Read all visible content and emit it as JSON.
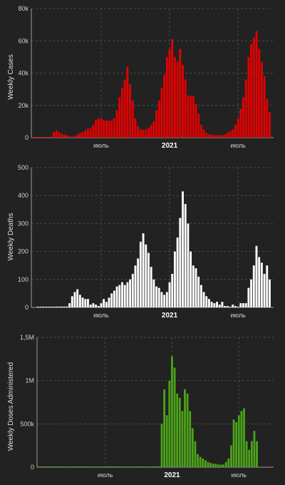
{
  "colors": {
    "background": "#222222",
    "grid": "#4a4a4a",
    "axis": "#9a9a9a",
    "text": "#cfcfcf"
  },
  "chart_data": [
    {
      "type": "bar",
      "ylabel": "Weekly Cases",
      "color": "#e50000",
      "ylim": [
        0,
        80000
      ],
      "yticks": [
        0,
        20000,
        40000,
        60000,
        80000
      ],
      "ytick_labels": [
        "0",
        "20k",
        "40k",
        "60k",
        "80k"
      ],
      "xticks": [
        {
          "week": 26,
          "label": "июль",
          "bold": false
        },
        {
          "week": 52,
          "label": "2021",
          "bold": true
        },
        {
          "week": 78,
          "label": "июль",
          "bold": false
        }
      ],
      "values": [
        0,
        0,
        0,
        0,
        0,
        0,
        0,
        500,
        3500,
        4500,
        3500,
        2500,
        2000,
        1500,
        1000,
        500,
        1000,
        2000,
        3000,
        3500,
        4500,
        5500,
        6000,
        8000,
        11000,
        12000,
        12000,
        11000,
        10500,
        10500,
        10500,
        12000,
        17000,
        25000,
        31000,
        36000,
        44000,
        33000,
        23000,
        12000,
        7000,
        5000,
        5000,
        5000,
        6000,
        8000,
        10000,
        17000,
        23000,
        31000,
        39000,
        50000,
        55000,
        61000,
        50000,
        47000,
        55000,
        45000,
        36000,
        26000,
        26000,
        26000,
        21000,
        15000,
        8000,
        5000,
        3000,
        2000,
        2000,
        1500,
        1500,
        1500,
        1500,
        2000,
        3000,
        4000,
        5000,
        8000,
        12000,
        18000,
        25000,
        36000,
        50000,
        58000,
        62000,
        66000,
        55000,
        47000,
        38000,
        24000,
        16000
      ]
    },
    {
      "type": "bar",
      "ylabel": "Weekly Deaths",
      "color": "#ffffff",
      "ylim": [
        0,
        500
      ],
      "yticks": [
        0,
        100,
        200,
        300,
        400,
        500
      ],
      "ytick_labels": [
        "0",
        "100",
        "200",
        "300",
        "400",
        "500"
      ],
      "xticks": [
        {
          "week": 26,
          "label": "июль",
          "bold": false
        },
        {
          "week": 52,
          "label": "2021",
          "bold": true
        },
        {
          "week": 78,
          "label": "июль",
          "bold": false
        }
      ],
      "values": [
        0,
        0,
        0,
        0,
        0,
        0,
        0,
        3,
        3,
        3,
        3,
        3,
        15,
        40,
        55,
        65,
        45,
        35,
        30,
        30,
        10,
        15,
        10,
        5,
        15,
        30,
        20,
        35,
        50,
        60,
        75,
        80,
        90,
        80,
        90,
        100,
        120,
        150,
        175,
        235,
        265,
        225,
        195,
        145,
        100,
        75,
        70,
        55,
        45,
        55,
        90,
        120,
        200,
        250,
        320,
        415,
        370,
        300,
        200,
        150,
        140,
        110,
        80,
        55,
        40,
        30,
        20,
        15,
        20,
        10,
        20,
        5,
        5,
        0,
        10,
        5,
        0,
        15,
        15,
        15,
        70,
        100,
        150,
        220,
        180,
        160,
        120,
        150,
        100
      ],
      "offset": 2
    },
    {
      "type": "bar",
      "ylabel": "Weekly Doses Administered",
      "color": "#4ca319",
      "ylim": [
        0,
        1500000
      ],
      "yticks": [
        0,
        500000,
        1000000,
        1500000
      ],
      "ytick_labels": [
        "0",
        "500k",
        "1M",
        "1,5M"
      ],
      "xticks": [
        {
          "week": 26,
          "label": "июль",
          "bold": false
        },
        {
          "week": 52,
          "label": "2021",
          "bold": true
        },
        {
          "week": 78,
          "label": "июль",
          "bold": false
        }
      ],
      "values": [
        0,
        0,
        0,
        0,
        0,
        0,
        0,
        0,
        0,
        0,
        0,
        0,
        0,
        0,
        0,
        0,
        0,
        0,
        0,
        0,
        0,
        0,
        0,
        0,
        0,
        0,
        0,
        0,
        0,
        0,
        0,
        0,
        0,
        0,
        0,
        0,
        0,
        0,
        0,
        0,
        0,
        0,
        0,
        0,
        0,
        0,
        0,
        10000,
        500000,
        900000,
        600000,
        1000000,
        1280000,
        1150000,
        850000,
        800000,
        650000,
        900000,
        850000,
        650000,
        450000,
        300000,
        150000,
        120000,
        100000,
        80000,
        60000,
        50000,
        40000,
        40000,
        30000,
        30000,
        30000,
        60000,
        100000,
        250000,
        550000,
        520000,
        600000,
        650000,
        680000,
        300000,
        200000,
        300000,
        420000,
        300000
      ]
    }
  ]
}
